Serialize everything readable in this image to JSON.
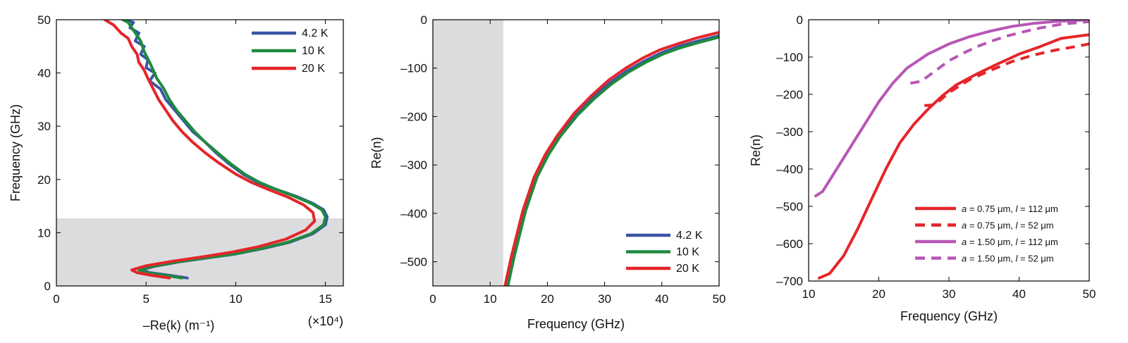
{
  "chart_data": [
    {
      "type": "line",
      "xlabel": "–Re(k) (m⁻¹)",
      "x_multiplier": "(×10⁴)",
      "ylabel": "Frequency (GHz)",
      "xlim": [
        0,
        16
      ],
      "ylim": [
        0,
        50
      ],
      "xticks": [
        {
          "v": 0,
          "label": "0"
        },
        {
          "v": 5,
          "label": "5"
        },
        {
          "v": 10,
          "label": "10"
        },
        {
          "v": 15,
          "label": "15"
        }
      ],
      "yticks": [
        {
          "v": 0,
          "label": "0"
        },
        {
          "v": 10,
          "label": "10"
        },
        {
          "v": 20,
          "label": "20"
        },
        {
          "v": 30,
          "label": "30"
        },
        {
          "v": 40,
          "label": "40"
        },
        {
          "v": 50,
          "label": "50"
        }
      ],
      "shaded_region": {
        "axis": "y",
        "from": 0,
        "to": 12.7,
        "color": "#dcdcde"
      },
      "legend_position": "top-right",
      "series": [
        {
          "name": "4.2 K",
          "color": "#3a55a4",
          "style": "solid",
          "points": [
            [
              7.3,
              1.5
            ],
            [
              6.3,
              2.0
            ],
            [
              5.2,
              2.5
            ],
            [
              4.7,
              3.0
            ],
            [
              5.5,
              3.7
            ],
            [
              6.8,
              4.5
            ],
            [
              8.3,
              5.2
            ],
            [
              10.0,
              6.0
            ],
            [
              11.5,
              7.0
            ],
            [
              13.0,
              8.2
            ],
            [
              14.3,
              9.8
            ],
            [
              15.0,
              11.5
            ],
            [
              15.1,
              13.0
            ],
            [
              14.9,
              14.3
            ],
            [
              14.3,
              15.5
            ],
            [
              13.4,
              16.8
            ],
            [
              12.2,
              18.2
            ],
            [
              11.2,
              19.5
            ],
            [
              10.4,
              21.0
            ],
            [
              9.6,
              23.0
            ],
            [
              8.9,
              25.0
            ],
            [
              8.3,
              27.0
            ],
            [
              7.6,
              29.0
            ],
            [
              7.1,
              31.0
            ],
            [
              6.6,
              33.0
            ],
            [
              6.1,
              35.0
            ],
            [
              5.8,
              37.0
            ],
            [
              5.2,
              38.5
            ],
            [
              5.5,
              40.0
            ],
            [
              5.0,
              41.0
            ],
            [
              5.1,
              42.5
            ],
            [
              4.7,
              43.5
            ],
            [
              4.9,
              45.0
            ],
            [
              4.4,
              46.0
            ],
            [
              4.6,
              47.5
            ],
            [
              4.1,
              48.5
            ],
            [
              4.3,
              49.5
            ],
            [
              3.8,
              50.0
            ]
          ]
        },
        {
          "name": "10 K",
          "color": "#1f8a3e",
          "style": "solid",
          "points": [
            [
              7.0,
              1.5
            ],
            [
              6.0,
              2.0
            ],
            [
              5.0,
              2.5
            ],
            [
              4.6,
              3.0
            ],
            [
              5.4,
              3.7
            ],
            [
              6.7,
              4.5
            ],
            [
              8.2,
              5.2
            ],
            [
              9.9,
              6.0
            ],
            [
              11.4,
              7.0
            ],
            [
              12.9,
              8.2
            ],
            [
              14.2,
              9.8
            ],
            [
              14.9,
              11.5
            ],
            [
              15.0,
              13.0
            ],
            [
              14.8,
              14.3
            ],
            [
              14.2,
              15.5
            ],
            [
              13.3,
              16.8
            ],
            [
              12.2,
              18.2
            ],
            [
              11.3,
              19.5
            ],
            [
              10.5,
              21.0
            ],
            [
              9.7,
              23.0
            ],
            [
              9.0,
              25.0
            ],
            [
              8.3,
              27.0
            ],
            [
              7.7,
              29.0
            ],
            [
              7.2,
              31.0
            ],
            [
              6.7,
              33.0
            ],
            [
              6.3,
              35.0
            ],
            [
              6.0,
              37.0
            ],
            [
              5.6,
              39.0
            ],
            [
              5.4,
              40.5
            ],
            [
              5.2,
              42.0
            ],
            [
              4.9,
              44.0
            ],
            [
              4.7,
              46.0
            ],
            [
              4.3,
              48.0
            ],
            [
              4.0,
              49.5
            ],
            [
              3.7,
              50.0
            ]
          ]
        },
        {
          "name": "20 K",
          "color": "#e5252a",
          "style": "solid",
          "points": [
            [
              6.3,
              1.5
            ],
            [
              5.3,
              2.0
            ],
            [
              4.5,
              2.5
            ],
            [
              4.2,
              3.0
            ],
            [
              5.0,
              3.8
            ],
            [
              6.4,
              4.6
            ],
            [
              8.0,
              5.4
            ],
            [
              9.7,
              6.3
            ],
            [
              11.3,
              7.4
            ],
            [
              12.8,
              8.8
            ],
            [
              13.9,
              10.5
            ],
            [
              14.4,
              12.2
            ],
            [
              14.3,
              13.8
            ],
            [
              13.8,
              15.2
            ],
            [
              12.9,
              16.7
            ],
            [
              11.9,
              18.0
            ],
            [
              10.9,
              19.4
            ],
            [
              10.0,
              21.0
            ],
            [
              9.1,
              23.0
            ],
            [
              8.3,
              25.0
            ],
            [
              7.6,
              27.0
            ],
            [
              7.0,
              29.0
            ],
            [
              6.5,
              31.0
            ],
            [
              6.1,
              33.0
            ],
            [
              5.7,
              35.0
            ],
            [
              5.4,
              37.0
            ],
            [
              5.1,
              39.0
            ],
            [
              4.9,
              40.5
            ],
            [
              4.6,
              42.0
            ],
            [
              4.5,
              43.5
            ],
            [
              4.2,
              45.0
            ],
            [
              4.0,
              46.5
            ],
            [
              3.6,
              47.5
            ],
            [
              3.2,
              49.0
            ],
            [
              2.7,
              50.0
            ]
          ]
        }
      ]
    },
    {
      "type": "line",
      "xlabel": "Frequency (GHz)",
      "ylabel": "Re(n)",
      "xlim": [
        0,
        50
      ],
      "ylim": [
        -550,
        0
      ],
      "xticks": [
        {
          "v": 0,
          "label": "0"
        },
        {
          "v": 10,
          "label": "10"
        },
        {
          "v": 20,
          "label": "20"
        },
        {
          "v": 30,
          "label": "30"
        },
        {
          "v": 40,
          "label": "40"
        },
        {
          "v": 50,
          "label": "50"
        }
      ],
      "yticks": [
        {
          "v": 0,
          "label": "0"
        },
        {
          "v": -100,
          "label": "–100"
        },
        {
          "v": -200,
          "label": "–200"
        },
        {
          "v": -300,
          "label": "–300"
        },
        {
          "v": -400,
          "label": "–400"
        },
        {
          "v": -500,
          "label": "–500"
        }
      ],
      "shaded_region": {
        "axis": "x",
        "from": 0,
        "to": 12.3,
        "color": "#dcdcde"
      },
      "legend_position": "bottom-right",
      "series": [
        {
          "name": "4.2 K",
          "color": "#3a55a4",
          "style": "solid",
          "points": [
            [
              12.9,
              -550
            ],
            [
              14,
              -490
            ],
            [
              16,
              -395
            ],
            [
              18,
              -325
            ],
            [
              20,
              -277
            ],
            [
              22,
              -240
            ],
            [
              25,
              -195
            ],
            [
              28,
              -160
            ],
            [
              31,
              -130
            ],
            [
              34,
              -105
            ],
            [
              37,
              -85
            ],
            [
              40,
              -68
            ],
            [
              43,
              -55
            ],
            [
              46,
              -45
            ],
            [
              50,
              -33
            ]
          ]
        },
        {
          "name": "10 K",
          "color": "#1f8a3e",
          "style": "solid",
          "points": [
            [
              13.1,
              -550
            ],
            [
              14.2,
              -490
            ],
            [
              16.2,
              -395
            ],
            [
              18.2,
              -325
            ],
            [
              20.2,
              -279
            ],
            [
              22.2,
              -242
            ],
            [
              25.2,
              -198
            ],
            [
              28.2,
              -163
            ],
            [
              31.2,
              -133
            ],
            [
              34.2,
              -108
            ],
            [
              37.2,
              -88
            ],
            [
              40.2,
              -71
            ],
            [
              43.2,
              -58
            ],
            [
              46.2,
              -48
            ],
            [
              50,
              -36
            ]
          ]
        },
        {
          "name": "20 K",
          "color": "#e5252a",
          "style": "solid",
          "points": [
            [
              12.6,
              -550
            ],
            [
              13.7,
              -490
            ],
            [
              15.7,
              -395
            ],
            [
              17.7,
              -325
            ],
            [
              19.7,
              -277
            ],
            [
              21.7,
              -240
            ],
            [
              24.7,
              -193
            ],
            [
              27.7,
              -157
            ],
            [
              30.7,
              -125
            ],
            [
              33.7,
              -100
            ],
            [
              36.7,
              -79
            ],
            [
              39.7,
              -62
            ],
            [
              42.7,
              -50
            ],
            [
              46,
              -38
            ],
            [
              50,
              -26
            ]
          ]
        }
      ]
    },
    {
      "type": "line",
      "xlabel": "Frequency (GHz)",
      "ylabel": "Re(n)",
      "xlim": [
        10,
        50
      ],
      "ylim": [
        -700,
        0
      ],
      "xticks": [
        {
          "v": 10,
          "label": "10"
        },
        {
          "v": 20,
          "label": "20"
        },
        {
          "v": 30,
          "label": "30"
        },
        {
          "v": 40,
          "label": "40"
        },
        {
          "v": 50,
          "label": "50"
        }
      ],
      "yticks": [
        {
          "v": 0,
          "label": "0"
        },
        {
          "v": -100,
          "label": "–100"
        },
        {
          "v": -200,
          "label": "–200"
        },
        {
          "v": -300,
          "label": "–300"
        },
        {
          "v": -400,
          "label": "–400"
        },
        {
          "v": -500,
          "label": "–500"
        },
        {
          "v": -600,
          "label": "–600"
        },
        {
          "v": -700,
          "label": "–700"
        }
      ],
      "legend_position": "bottom-right",
      "series": [
        {
          "name": "a = 0.75 μm, l = 112 μm",
          "color": "#e5252a",
          "style": "solid",
          "points": [
            [
              11.5,
              -692
            ],
            [
              13,
              -680
            ],
            [
              15,
              -632
            ],
            [
              17,
              -560
            ],
            [
              19,
              -480
            ],
            [
              21,
              -400
            ],
            [
              23,
              -330
            ],
            [
              25,
              -280
            ],
            [
              27,
              -240
            ],
            [
              29,
              -205
            ],
            [
              31,
              -175
            ],
            [
              34,
              -145
            ],
            [
              37,
              -118
            ],
            [
              40,
              -92
            ],
            [
              43,
              -72
            ],
            [
              46,
              -50
            ],
            [
              50,
              -40
            ]
          ]
        },
        {
          "name": "a = 0.75 μm, l = 52 μm",
          "color": "#e5252a",
          "style": "dashed",
          "points": [
            [
              26.5,
              -230
            ],
            [
              28,
              -228
            ],
            [
              30,
              -195
            ],
            [
              33,
              -160
            ],
            [
              36,
              -135
            ],
            [
              39,
              -112
            ],
            [
              42,
              -95
            ],
            [
              45,
              -82
            ],
            [
              48,
              -72
            ],
            [
              50,
              -65
            ]
          ]
        },
        {
          "name": "a = 1.50 μm, l = 112 μm",
          "color": "#b757b5",
          "style": "solid",
          "points": [
            [
              11,
              -472
            ],
            [
              12,
              -460
            ],
            [
              14,
              -400
            ],
            [
              16,
              -340
            ],
            [
              18,
              -280
            ],
            [
              20,
              -220
            ],
            [
              22,
              -170
            ],
            [
              24,
              -130
            ],
            [
              27,
              -92
            ],
            [
              30,
              -65
            ],
            [
              33,
              -45
            ],
            [
              36,
              -30
            ],
            [
              39,
              -18
            ],
            [
              42,
              -10
            ],
            [
              45,
              -5
            ],
            [
              50,
              0
            ]
          ]
        },
        {
          "name": "a = 1.50 μm, l = 52 μm",
          "color": "#b757b5",
          "style": "dashed",
          "points": [
            [
              24.5,
              -170
            ],
            [
              26,
              -165
            ],
            [
              28,
              -138
            ],
            [
              30,
              -110
            ],
            [
              32,
              -90
            ],
            [
              34,
              -72
            ],
            [
              36,
              -58
            ],
            [
              38,
              -45
            ],
            [
              40,
              -35
            ],
            [
              43,
              -22
            ],
            [
              46,
              -12
            ],
            [
              50,
              -5
            ]
          ]
        }
      ]
    }
  ]
}
